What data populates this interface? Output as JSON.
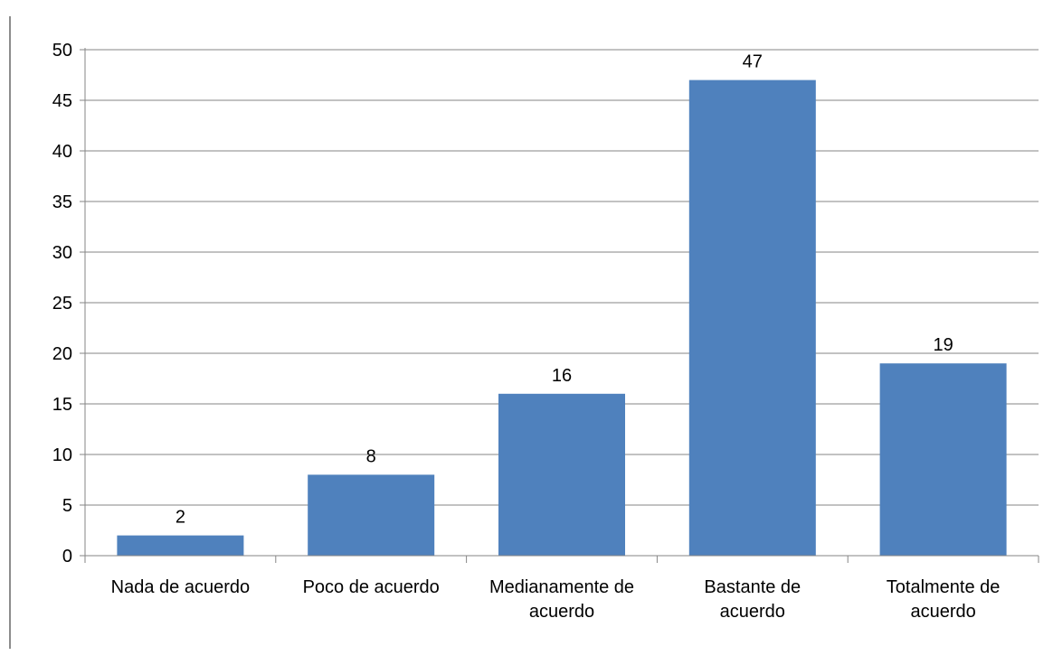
{
  "chart_data": {
    "type": "bar",
    "categories": [
      [
        "Nada de acuerdo"
      ],
      [
        "Poco de acuerdo"
      ],
      [
        "Medianamente de",
        "acuerdo"
      ],
      [
        "Bastante de",
        "acuerdo"
      ],
      [
        "Totalmente de",
        "acuerdo"
      ]
    ],
    "values": [
      2,
      8,
      16,
      47,
      19
    ],
    "data_labels": [
      "2",
      "8",
      "16",
      "47",
      "19"
    ],
    "ylim": [
      0,
      50
    ],
    "yticks": [
      "0",
      "5",
      "10",
      "15",
      "20",
      "25",
      "30",
      "35",
      "40",
      "45",
      "50"
    ],
    "grid": true,
    "legend": "none",
    "title": "",
    "xlabel": "",
    "ylabel": "",
    "colors": {
      "bar": "#4f81bd",
      "grid": "#868686",
      "axis": "#868686"
    }
  }
}
